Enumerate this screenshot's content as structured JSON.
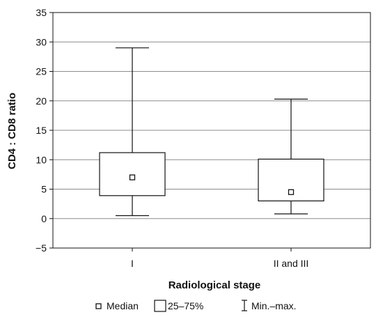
{
  "chart_data": {
    "type": "boxplot",
    "title": "",
    "xlabel": "Radiological stage",
    "ylabel": "CD4 : CD8 ratio",
    "ylim": [
      -5,
      35
    ],
    "yticks": [
      -5,
      0,
      5,
      10,
      15,
      20,
      25,
      30,
      35
    ],
    "ytick_labels": [
      "−5",
      "0",
      "5",
      "10",
      "15",
      "20",
      "25",
      "30",
      "35"
    ],
    "grid": "horizontal",
    "legend_position": "bottom",
    "categories": [
      "I",
      "II and III"
    ],
    "boxes": [
      {
        "category": "I",
        "min": 0.5,
        "q1": 3.9,
        "median": 7.0,
        "q3": 11.2,
        "max": 29.0
      },
      {
        "category": "II and III",
        "min": 0.8,
        "q1": 3.0,
        "median": 4.5,
        "q3": 10.1,
        "max": 20.3
      }
    ],
    "legend": {
      "median": "Median",
      "box": "25–75%",
      "whisker": "Min.–max."
    },
    "colors": {
      "line": "#111111",
      "grid": "#8c8c8c",
      "fill": "#ffffff"
    }
  }
}
